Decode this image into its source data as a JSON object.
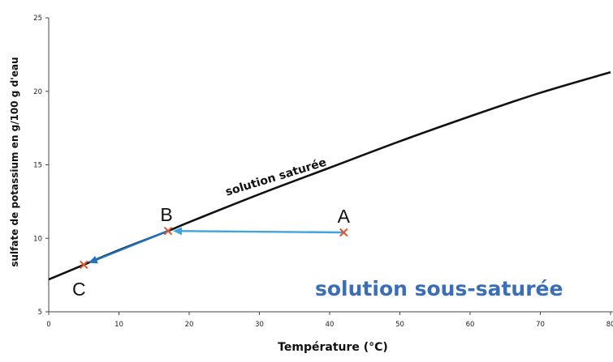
{
  "chart_data": {
    "type": "line",
    "xlabel": "Température (°C)",
    "ylabel": "sulfate de potassium en g/100 g d'eau",
    "xlim": [
      0,
      80
    ],
    "ylim": [
      5,
      25
    ],
    "xticks": [
      0,
      10,
      20,
      30,
      40,
      50,
      60,
      70,
      80
    ],
    "yticks": [
      5,
      10,
      15,
      20,
      25
    ],
    "grid": false,
    "series": [
      {
        "name": "solution saturée",
        "color": "#111111",
        "x": [
          0,
          5,
          10,
          17,
          20,
          30,
          40,
          50,
          60,
          70,
          80
        ],
        "y": [
          7.2,
          8.2,
          9.2,
          10.5,
          11.1,
          13.0,
          14.8,
          16.6,
          18.3,
          19.9,
          21.3
        ]
      }
    ],
    "points": [
      {
        "label": "A",
        "x": 42,
        "y": 10.4
      },
      {
        "label": "B",
        "x": 17,
        "y": 10.5
      },
      {
        "label": "C",
        "x": 5,
        "y": 8.2
      }
    ],
    "arrows": [
      {
        "from": "A",
        "to": "B",
        "color": "#3fa3dd"
      },
      {
        "from": "B",
        "to": "C",
        "color": "#1f73c4"
      }
    ],
    "annotations": {
      "curve_label": "solution saturée",
      "region_label": "solution sous-saturée",
      "region_color": "#3a6fb8"
    },
    "marker_color": "#e0542e"
  }
}
